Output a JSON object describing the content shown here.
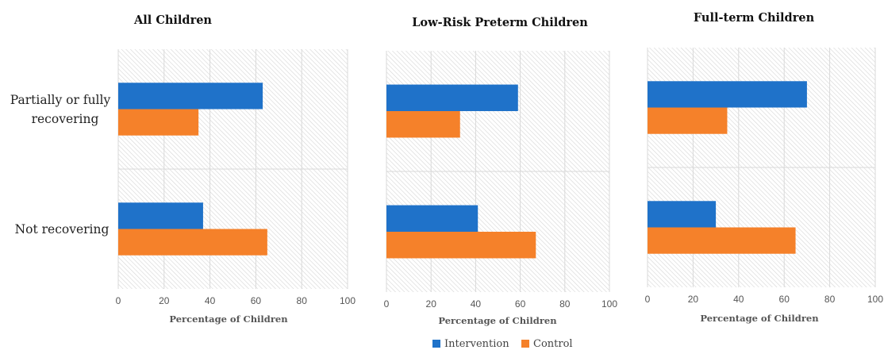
{
  "chart_data": [
    {
      "type": "bar",
      "orientation": "horizontal",
      "title": "All Children",
      "xlabel": "Percentage of Children",
      "xlim": [
        0,
        100
      ],
      "ticks": [
        "0",
        "20",
        "40",
        "60",
        "80",
        "100"
      ],
      "categories": [
        "Partially or fully recovering",
        "Not recovering"
      ],
      "series": [
        {
          "name": "Intervention",
          "values": [
            63,
            37
          ]
        },
        {
          "name": "Control",
          "values": [
            35,
            65
          ]
        }
      ]
    },
    {
      "type": "bar",
      "orientation": "horizontal",
      "title": "Low-Risk Preterm Children",
      "xlabel": "Percentage of Children",
      "xlim": [
        0,
        100
      ],
      "ticks": [
        "0",
        "20",
        "40",
        "60",
        "80",
        "100"
      ],
      "categories": [
        "Partially or fully recovering",
        "Not recovering"
      ],
      "series": [
        {
          "name": "Intervention",
          "values": [
            59,
            41
          ]
        },
        {
          "name": "Control",
          "values": [
            33,
            67
          ]
        }
      ]
    },
    {
      "type": "bar",
      "orientation": "horizontal",
      "title": "Full-term Children",
      "xlabel": "Percentage of Children",
      "xlim": [
        0,
        100
      ],
      "ticks": [
        "0",
        "20",
        "40",
        "60",
        "80",
        "100"
      ],
      "categories": [
        "Partially or fully recovering",
        "Not recovering"
      ],
      "series": [
        {
          "name": "Intervention",
          "values": [
            70,
            30
          ]
        },
        {
          "name": "Control",
          "values": [
            35,
            65
          ]
        }
      ]
    }
  ],
  "category_labels": [
    [
      "Partially or fully",
      "recovering"
    ],
    [
      "Not recovering"
    ]
  ],
  "legend": {
    "placement": "bottom-center",
    "items": [
      {
        "name": "Intervention",
        "color": "#1f72c9"
      },
      {
        "name": "Control",
        "color": "#f5812a"
      }
    ]
  },
  "colors": {
    "intervention": "#1f72c9",
    "control": "#f5812a"
  }
}
